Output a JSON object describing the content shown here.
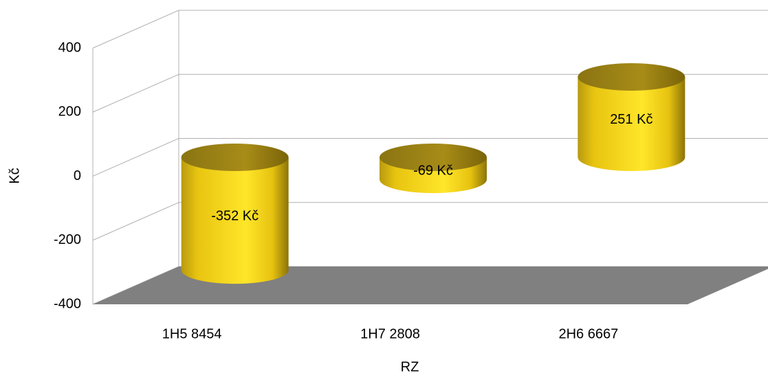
{
  "chart_data": {
    "type": "bar3d",
    "categories": [
      "1H5 8454",
      "1H7 2808",
      "2H6 6667"
    ],
    "values": [
      -352,
      -69,
      251
    ],
    "value_labels": [
      "-352 Kč",
      "-69 Kč",
      "251 Kč"
    ],
    "color": "#ffd21a",
    "ylim": [
      -400,
      400
    ],
    "yticks": [
      -400,
      -200,
      0,
      200,
      400
    ],
    "xlabel": "RZ",
    "ylabel": "Kč",
    "grid": true
  }
}
